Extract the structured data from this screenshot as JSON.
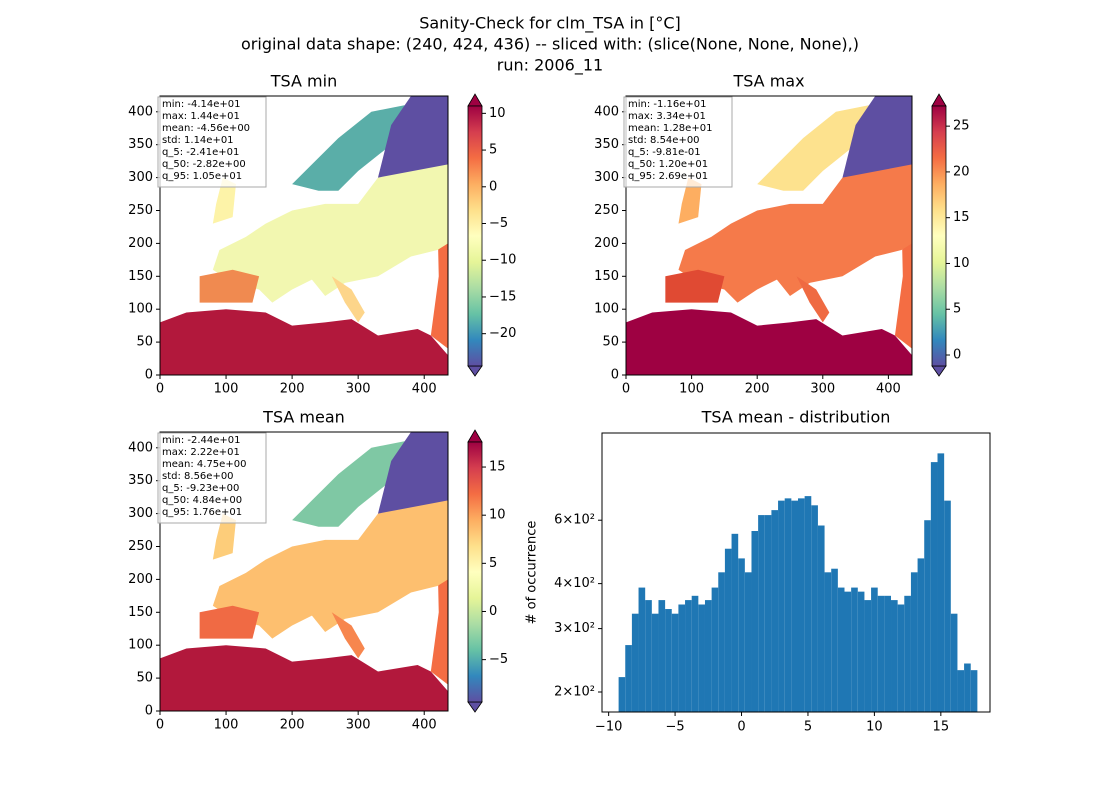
{
  "figure": {
    "title_lines": [
      "Sanity-Check for clm_TSA in [°C]",
      "original data shape: (240, 424, 436) -- sliced with: (slice(None, None, None),)",
      "run: 2006_11"
    ]
  },
  "chart_data": [
    {
      "type": "heatmap",
      "title": "TSA min",
      "xlim": [
        0,
        436
      ],
      "ylim": [
        0,
        424
      ],
      "xticks": [
        0,
        100,
        200,
        300,
        400
      ],
      "yticks": [
        0,
        50,
        100,
        150,
        200,
        250,
        300,
        350,
        400
      ],
      "colormap": "Spectral_r",
      "clim": [
        -24.4,
        11.0
      ],
      "cticks": [
        {
          "value": -20,
          "label": "−20"
        },
        {
          "value": -15,
          "label": "−15"
        },
        {
          "value": -10,
          "label": "−10"
        },
        {
          "value": -5,
          "label": "−5"
        },
        0,
        5,
        10
      ],
      "stats": [
        "min: -4.14e+01",
        "max: 1.44e+01",
        "mean: -4.56e+00",
        "std: 1.14e+01",
        "q_5: -2.41e+01",
        "q_50: -2.82e+00",
        "q_95: 1.05e+01"
      ]
    },
    {
      "type": "heatmap",
      "title": "TSA max",
      "xlim": [
        0,
        436
      ],
      "ylim": [
        0,
        424
      ],
      "xticks": [
        0,
        100,
        200,
        300,
        400
      ],
      "yticks": [
        0,
        50,
        100,
        150,
        200,
        250,
        300,
        350,
        400
      ],
      "colormap": "Spectral_r",
      "clim": [
        -1.2,
        27.2
      ],
      "cticks": [
        0,
        5,
        10,
        15,
        20,
        25
      ],
      "stats": [
        "min: -1.16e+01",
        "max: 3.34e+01",
        "mean: 1.28e+01",
        "std: 8.54e+00",
        "q_5: -9.81e-01",
        "q_50: 1.20e+01",
        "q_95: 2.69e+01"
      ]
    },
    {
      "type": "heatmap",
      "title": "TSA mean",
      "xlim": [
        0,
        436
      ],
      "ylim": [
        0,
        424
      ],
      "xticks": [
        0,
        100,
        200,
        300,
        400
      ],
      "yticks": [
        0,
        50,
        100,
        150,
        200,
        250,
        300,
        350,
        400
      ],
      "colormap": "Spectral_r",
      "clim": [
        -9.4,
        17.6
      ],
      "cticks": [
        {
          "value": -5,
          "label": "−5"
        },
        0,
        5,
        10,
        15
      ],
      "stats": [
        "min: -2.44e+01",
        "max: 2.22e+01",
        "mean: 4.75e+00",
        "std: 8.56e+00",
        "q_5: -9.23e+00",
        "q_50: 4.84e+00",
        "q_95: 1.76e+01"
      ]
    },
    {
      "type": "histogram",
      "title": "TSA mean - distribution",
      "y_label": "# of occurrence",
      "color": "#1f77b4",
      "yscale": "log",
      "xlim": [
        -10.5,
        18.7
      ],
      "ylim": [
        176,
        1048
      ],
      "xticks": [
        {
          "value": -10,
          "label": "−10"
        },
        {
          "value": -5,
          "label": "−5"
        },
        0,
        5,
        10,
        15
      ],
      "yticks": [
        {
          "value": 200,
          "label": "2×10²"
        },
        {
          "value": 300,
          "label": "3×10²"
        },
        {
          "value": 400,
          "label": "4×10²"
        },
        {
          "value": 600,
          "label": "6×10²"
        }
      ],
      "bins": [
        -9.25,
        -8.75,
        -8.25,
        -7.75,
        -7.25,
        -6.75,
        -6.25,
        -5.75,
        -5.25,
        -4.75,
        -4.25,
        -3.75,
        -3.25,
        -2.75,
        -2.25,
        -1.75,
        -1.25,
        -0.75,
        -0.25,
        0.25,
        0.75,
        1.25,
        1.75,
        2.25,
        2.75,
        3.25,
        3.75,
        4.25,
        4.75,
        5.25,
        5.75,
        6.25,
        6.75,
        7.25,
        7.75,
        8.25,
        8.75,
        9.25,
        9.75,
        10.25,
        10.75,
        11.25,
        11.75,
        12.25,
        12.75,
        13.25,
        13.75,
        14.25,
        14.75,
        15.25,
        15.75,
        16.25,
        16.75,
        17.25,
        17.75
      ],
      "values": [
        220,
        270,
        330,
        390,
        360,
        330,
        360,
        340,
        330,
        350,
        360,
        370,
        350,
        360,
        390,
        430,
        500,
        550,
        470,
        430,
        560,
        620,
        620,
        640,
        680,
        690,
        680,
        690,
        700,
        660,
        580,
        430,
        440,
        390,
        380,
        390,
        380,
        360,
        390,
        370,
        370,
        360,
        350,
        370,
        430,
        470,
        600,
        870,
        920,
        680,
        330,
        230,
        240,
        230
      ]
    }
  ]
}
